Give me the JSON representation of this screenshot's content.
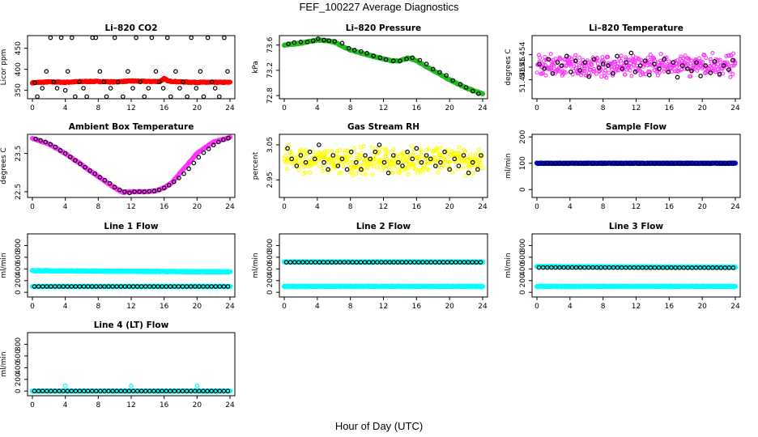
{
  "figure": {
    "title": "FEF_100227  Average Diagnostics",
    "xlabel": "Hour of Day (UTC)"
  },
  "colors": {
    "black": "#000000",
    "red": "#ff0000",
    "green": "#22bb22",
    "magenta": "#ff33ff",
    "yellow": "#ffff00",
    "blue": "#0000ff",
    "cyan": "#00ffff"
  },
  "chart_data": [
    {
      "type": "scatter",
      "title": "Li–820 CO2",
      "ylabel": "Licor ppm",
      "xlim": [
        0,
        24
      ],
      "ylim": [
        330,
        480
      ],
      "xticks": [
        "0",
        "4",
        "8",
        "12",
        "16",
        "20",
        "24"
      ],
      "yticks": [
        "350",
        "400",
        "450"
      ],
      "series": [
        {
          "name": "average",
          "color": "red",
          "style": "line",
          "x": [
            0,
            2,
            4,
            6,
            8,
            10,
            12,
            14,
            15.5,
            16,
            16.5,
            18,
            20,
            22,
            24
          ],
          "y": [
            368,
            370,
            369,
            371,
            371,
            370,
            372,
            371,
            371,
            378,
            372,
            370,
            369,
            369,
            369
          ]
        },
        {
          "name": "black points",
          "color": "black",
          "style": "points",
          "x": [
            0.3,
            0.6,
            1.2,
            1.7,
            2.2,
            2.6,
            3,
            3.5,
            4,
            4.3,
            4.8,
            5.2,
            5.7,
            6.2,
            6.6,
            7.3,
            7.7,
            8.2,
            8.7,
            9,
            9.5,
            10,
            10.4,
            11,
            11.6,
            12.2,
            12.6,
            13.1,
            13.6,
            14.1,
            14.5,
            15,
            15.4,
            15.9,
            16.4,
            16.8,
            17.4,
            17.9,
            18.3,
            18.8,
            19.3,
            19.9,
            20.4,
            20.8,
            21.3,
            21.8,
            22.2,
            22.7,
            23.3,
            23.7
          ],
          "y": [
            368,
            335,
            355,
            395,
            475,
            370,
            355,
            475,
            350,
            395,
            475,
            335,
            370,
            355,
            335,
            475,
            475,
            395,
            370,
            335,
            355,
            475,
            370,
            335,
            395,
            355,
            475,
            370,
            335,
            355,
            475,
            395,
            370,
            355,
            475,
            335,
            395,
            355,
            370,
            335,
            475,
            355,
            395,
            335,
            475,
            370,
            355,
            335,
            475,
            395
          ]
        }
      ]
    },
    {
      "type": "scatter",
      "title": "Li–820 Pressure",
      "ylabel": "kPa",
      "xlim": [
        0,
        24
      ],
      "ylim": [
        72.75,
        73.75
      ],
      "xticks": [
        "0",
        "4",
        "8",
        "12",
        "16",
        "20",
        "24"
      ],
      "yticks": [
        "72.8",
        "73.2",
        "73.6"
      ],
      "series": [
        {
          "name": "pressure",
          "color": "green",
          "style": "line",
          "x": [
            0,
            2,
            4,
            5,
            6,
            8,
            10,
            12,
            13,
            14,
            15,
            16,
            18,
            20,
            22,
            24
          ],
          "y": [
            73.6,
            73.63,
            73.68,
            73.67,
            73.65,
            73.52,
            73.45,
            73.38,
            73.35,
            73.35,
            73.4,
            73.35,
            73.2,
            73.05,
            72.92,
            72.83
          ]
        },
        {
          "name": "black points",
          "color": "black",
          "style": "points",
          "x": [
            0.5,
            1.2,
            2,
            2.8,
            3.5,
            4.1,
            4.8,
            5.4,
            6.1,
            7,
            7.8,
            8.5,
            9.3,
            10,
            10.8,
            11.6,
            12.3,
            13.2,
            14,
            14.8,
            15.5,
            16.4,
            17.2,
            18,
            18.8,
            19.6,
            20.4,
            21.3,
            22,
            22.8,
            23.5
          ],
          "y": [
            73.62,
            73.64,
            73.65,
            73.65,
            73.67,
            73.7,
            73.68,
            73.67,
            73.66,
            73.63,
            73.55,
            73.52,
            73.5,
            73.47,
            73.43,
            73.4,
            73.37,
            73.35,
            73.35,
            73.38,
            73.4,
            73.36,
            73.3,
            73.22,
            73.17,
            73.12,
            73.04,
            72.98,
            72.93,
            72.87,
            72.83
          ]
        }
      ]
    },
    {
      "type": "scatter",
      "title": "Li–820 Temperature",
      "ylabel": "degrees C",
      "xlim": [
        0,
        24
      ],
      "ylim": [
        51.44,
        51.46
      ],
      "xticks": [
        "0",
        "4",
        "8",
        "12",
        "16",
        "20",
        "24"
      ],
      "yticks": [
        "51.446",
        "51.45",
        "51.454"
      ],
      "series": [
        {
          "name": "average",
          "color": "magenta",
          "style": "noise",
          "x": [
            0,
            24
          ],
          "y": [
            51.4505,
            51.4505
          ],
          "spread": 0.004
        },
        {
          "name": "black points",
          "color": "black",
          "style": "points",
          "x": [
            0.3,
            0.9,
            1.4,
            1.9,
            2.5,
            3,
            3.6,
            4.1,
            4.7,
            5.2,
            5.8,
            6.3,
            6.9,
            7.5,
            8,
            8.6,
            9.2,
            9.7,
            10.3,
            10.8,
            11.4,
            11.9,
            12.5,
            13.1,
            13.6,
            14.2,
            14.8,
            15.4,
            15.9,
            16.5,
            17,
            17.6,
            18.2,
            18.7,
            19.3,
            19.8,
            20.4,
            21,
            21.5,
            22.1,
            22.6,
            23.2,
            23.7
          ],
          "y": [
            51.451,
            51.4495,
            51.4525,
            51.448,
            51.4515,
            51.4505,
            51.4535,
            51.4485,
            51.452,
            51.449,
            51.4515,
            51.447,
            51.4525,
            51.4498,
            51.451,
            51.4505,
            51.448,
            51.4535,
            51.4495,
            51.4515,
            51.4545,
            51.4485,
            51.4505,
            51.452,
            51.4475,
            51.451,
            51.4495,
            51.4525,
            51.4485,
            51.4515,
            51.4468,
            51.4505,
            51.4495,
            51.4488,
            51.4515,
            51.4472,
            51.4505,
            51.4482,
            51.4518,
            51.4478,
            51.4505,
            51.4492,
            51.4522
          ]
        }
      ]
    },
    {
      "type": "scatter",
      "title": "Ambient Box Temperature",
      "ylabel": "degrees C",
      "xlim": [
        0,
        24
      ],
      "ylim": [
        22.35,
        24.0
      ],
      "xticks": [
        "0",
        "4",
        "8",
        "12",
        "16",
        "20",
        "24"
      ],
      "yticks": [
        "22.5",
        "23.5"
      ],
      "series": [
        {
          "name": "temperature",
          "color": "magenta",
          "style": "line",
          "x": [
            0,
            2,
            4,
            6,
            8,
            10,
            11,
            12,
            14,
            15,
            16,
            17,
            18,
            20,
            22,
            24
          ],
          "y": [
            23.9,
            23.75,
            23.5,
            23.2,
            22.9,
            22.6,
            22.48,
            22.5,
            22.5,
            22.52,
            22.6,
            22.75,
            23.0,
            23.5,
            23.8,
            23.92
          ]
        },
        {
          "name": "black points",
          "color": "black",
          "style": "points",
          "x": [
            0.4,
            1,
            1.6,
            2.2,
            2.8,
            3.4,
            4,
            4.6,
            5.2,
            5.8,
            6.4,
            7,
            7.6,
            8.2,
            8.8,
            9.4,
            10,
            10.6,
            11.2,
            11.8,
            12.4,
            13,
            13.6,
            14.2,
            14.8,
            15.4,
            16,
            16.6,
            17.2,
            17.8,
            18.4,
            19,
            19.6,
            20.2,
            20.8,
            21.4,
            22,
            22.6,
            23.2,
            23.8
          ],
          "y": [
            23.88,
            23.84,
            23.8,
            23.74,
            23.67,
            23.58,
            23.5,
            23.41,
            23.32,
            23.23,
            23.14,
            23.05,
            22.97,
            22.88,
            22.8,
            22.72,
            22.62,
            22.55,
            22.5,
            22.47,
            22.5,
            22.5,
            22.5,
            22.51,
            22.52,
            22.55,
            22.6,
            22.67,
            22.76,
            22.86,
            22.97,
            23.1,
            23.25,
            23.4,
            23.52,
            23.62,
            23.72,
            23.8,
            23.86,
            23.9
          ]
        }
      ]
    },
    {
      "type": "scatter",
      "title": "Gas Stream RH",
      "ylabel": "percent",
      "xlim": [
        0,
        24
      ],
      "ylim": [
        2.9,
        3.08
      ],
      "xticks": [
        "0",
        "4",
        "8",
        "12",
        "16",
        "20",
        "24"
      ],
      "yticks": [
        "2.95",
        "3.05"
      ],
      "series": [
        {
          "name": "average",
          "color": "yellow",
          "style": "noise",
          "x": [
            0,
            24
          ],
          "y": [
            3.005,
            3.005
          ],
          "spread": 0.045
        },
        {
          "name": "black points",
          "color": "black",
          "style": "points",
          "x": [
            0.4,
            0.9,
            1.5,
            2,
            2.6,
            3.1,
            3.7,
            4.2,
            4.8,
            5.3,
            5.9,
            6.5,
            7,
            7.6,
            8.1,
            8.7,
            9.3,
            9.8,
            10.4,
            11,
            11.5,
            12.1,
            12.6,
            13.2,
            13.8,
            14.3,
            14.9,
            15.5,
            16,
            16.6,
            17.2,
            17.7,
            18.3,
            18.9,
            19.4,
            20,
            20.6,
            21.1,
            21.7,
            22.3,
            22.8,
            23.4,
            23.8
          ],
          "y": [
            3.04,
            3.01,
            2.99,
            3.02,
            3.0,
            3.03,
            3.01,
            3.05,
            3.0,
            2.98,
            3.02,
            2.99,
            3.01,
            2.98,
            3.03,
            3.0,
            2.98,
            3.02,
            3.01,
            3.03,
            3.05,
            3.0,
            2.97,
            3.02,
            3.0,
            2.99,
            3.03,
            3.01,
            3.04,
            3.0,
            3.02,
            3.01,
            2.99,
            3.0,
            3.03,
            2.98,
            3.01,
            2.99,
            3.02,
            2.97,
            3.0,
            2.98,
            3.02
          ]
        }
      ]
    },
    {
      "type": "scatter",
      "title": "Sample Flow",
      "ylabel": "ml/min",
      "xlim": [
        0,
        24
      ],
      "ylim": [
        -30,
        210
      ],
      "xticks": [
        "0",
        "4",
        "8",
        "12",
        "16",
        "20",
        "24"
      ],
      "yticks": [
        "0",
        "100",
        "200"
      ],
      "series": [
        {
          "name": "average",
          "color": "blue",
          "style": "band",
          "x": [
            0,
            24
          ],
          "y": [
            100,
            100
          ],
          "halfwidth": 5
        },
        {
          "name": "black points",
          "color": "black",
          "style": "dense",
          "x": [
            0,
            24
          ],
          "y": [
            100,
            100
          ],
          "count": 48
        }
      ]
    },
    {
      "type": "scatter",
      "title": "Line 1 Flow",
      "ylabel": "ml/min",
      "xlim": [
        0,
        24
      ],
      "ylim": [
        -80,
        1000
      ],
      "xticks": [
        "0",
        "4",
        "8",
        "12",
        "16",
        "20",
        "24"
      ],
      "yticks": [
        "0",
        "200",
        "400",
        "600",
        "800"
      ],
      "series": [
        {
          "name": "cyan upper",
          "color": "cyan",
          "style": "band",
          "x": [
            0,
            24
          ],
          "y": [
            370,
            350
          ],
          "halfwidth": 25
        },
        {
          "name": "cyan lower",
          "color": "cyan",
          "style": "band",
          "x": [
            0,
            24
          ],
          "y": [
            100,
            100
          ],
          "halfwidth": 18
        },
        {
          "name": "black points",
          "color": "black",
          "style": "dense",
          "x": [
            0,
            24
          ],
          "y": [
            100,
            100
          ],
          "count": 48
        }
      ]
    },
    {
      "type": "scatter",
      "title": "Line 2 Flow",
      "ylabel": "ml/min",
      "xlim": [
        0,
        24
      ],
      "ylim": [
        -80,
        1000
      ],
      "xticks": [
        "0",
        "4",
        "8",
        "12",
        "16",
        "20",
        "24"
      ],
      "yticks": [
        "0",
        "200",
        "400",
        "600",
        "800"
      ],
      "series": [
        {
          "name": "cyan upper",
          "color": "cyan",
          "style": "band",
          "x": [
            0,
            24
          ],
          "y": [
            520,
            520
          ],
          "halfwidth": 25
        },
        {
          "name": "cyan lower",
          "color": "cyan",
          "style": "band",
          "x": [
            0,
            24
          ],
          "y": [
            100,
            100
          ],
          "halfwidth": 18
        },
        {
          "name": "black points",
          "color": "black",
          "style": "dense",
          "x": [
            0,
            24
          ],
          "y": [
            515,
            515
          ],
          "count": 48
        }
      ]
    },
    {
      "type": "scatter",
      "title": "Line 3 Flow",
      "ylabel": "ml/min",
      "xlim": [
        0,
        24
      ],
      "ylim": [
        -80,
        1000
      ],
      "xticks": [
        "0",
        "4",
        "8",
        "12",
        "16",
        "20",
        "24"
      ],
      "yticks": [
        "0",
        "200",
        "400",
        "600",
        "800"
      ],
      "series": [
        {
          "name": "cyan upper",
          "color": "cyan",
          "style": "band",
          "x": [
            0,
            24
          ],
          "y": [
            440,
            430
          ],
          "halfwidth": 25
        },
        {
          "name": "cyan lower",
          "color": "cyan",
          "style": "band",
          "x": [
            0,
            24
          ],
          "y": [
            100,
            100
          ],
          "halfwidth": 18
        },
        {
          "name": "black points",
          "color": "black",
          "style": "dense",
          "x": [
            0,
            24
          ],
          "y": [
            425,
            420
          ],
          "count": 48
        }
      ]
    },
    {
      "type": "scatter",
      "title": "Line 4 (LT) Flow",
      "ylabel": "ml/min",
      "xlim": [
        0,
        24
      ],
      "ylim": [
        -80,
        1000
      ],
      "xticks": [
        "0",
        "4",
        "8",
        "12",
        "16",
        "20",
        "24"
      ],
      "yticks": [
        "0",
        "200",
        "400",
        "600",
        "800"
      ],
      "series": [
        {
          "name": "cyan",
          "color": "cyan",
          "style": "band",
          "x": [
            0,
            24
          ],
          "y": [
            0,
            0
          ],
          "halfwidth": 18
        },
        {
          "name": "cyan outliers",
          "color": "cyan",
          "style": "points",
          "x": [
            4,
            12,
            20
          ],
          "y": [
            90,
            90,
            90
          ]
        },
        {
          "name": "black points",
          "color": "black",
          "style": "dense",
          "x": [
            0,
            24
          ],
          "y": [
            0,
            0
          ],
          "count": 48
        }
      ]
    }
  ]
}
